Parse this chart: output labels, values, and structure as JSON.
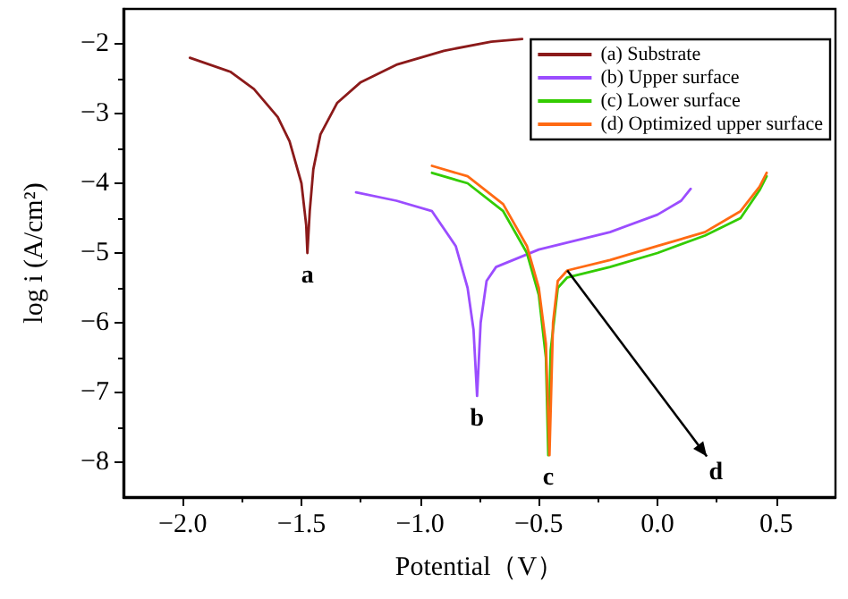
{
  "chart_data": {
    "type": "line",
    "xlabel": "Potential（V）",
    "ylabel": "log i (A/cm²)",
    "xlim": [
      -2.25,
      0.75
    ],
    "xticks": [
      {
        "value": -2,
        "label": "−2.0"
      },
      {
        "value": -1.5,
        "label": "−1.5"
      },
      {
        "value": -1,
        "label": "−1.0"
      },
      {
        "value": -0.5,
        "label": "−0.5"
      },
      {
        "value": 0,
        "label": "0.0"
      },
      {
        "value": 0.5,
        "label": "0.5"
      }
    ],
    "ylim": [
      -8.5,
      -1.5
    ],
    "yticks": [
      -8,
      -7,
      -6,
      -5,
      -4,
      -3,
      -2
    ],
    "grid": false,
    "legend": "top right",
    "marker": "none",
    "line_style": "solid",
    "series": [
      {
        "name": "(a) Substrate",
        "color": "#8b1a1a",
        "x": [
          -1.97,
          -1.8,
          -1.7,
          -1.6,
          -1.55,
          -1.5,
          -1.48,
          -1.475,
          -1.465,
          -1.45,
          -1.42,
          -1.35,
          -1.25,
          -1.1,
          -0.9,
          -0.7,
          -0.57
        ],
        "values": [
          -2.2,
          -2.4,
          -2.65,
          -3.05,
          -3.4,
          -4.0,
          -4.6,
          -5.0,
          -4.4,
          -3.8,
          -3.3,
          -2.85,
          -2.55,
          -2.3,
          -2.1,
          -1.97,
          -1.93
        ]
      },
      {
        "name": "(b) Upper surface",
        "color": "#9b4dff",
        "x": [
          -1.27,
          -1.1,
          -0.95,
          -0.85,
          -0.8,
          -0.775,
          -0.76,
          -0.745,
          -0.72,
          -0.68,
          -0.5,
          -0.2,
          0.0,
          0.1,
          0.14
        ],
        "values": [
          -4.13,
          -4.25,
          -4.4,
          -4.9,
          -5.5,
          -6.1,
          -7.05,
          -6.0,
          -5.4,
          -5.2,
          -4.95,
          -4.7,
          -4.45,
          -4.25,
          -4.08
        ]
      },
      {
        "name": "(c) Lower surface",
        "color": "#33cc00",
        "x": [
          -0.95,
          -0.8,
          -0.65,
          -0.55,
          -0.5,
          -0.47,
          -0.46,
          -0.45,
          -0.42,
          -0.38,
          -0.2,
          0.0,
          0.2,
          0.35,
          0.43,
          0.46
        ],
        "values": [
          -3.85,
          -4.0,
          -4.4,
          -5.0,
          -5.6,
          -6.5,
          -7.9,
          -6.4,
          -5.5,
          -5.35,
          -5.2,
          -5.0,
          -4.75,
          -4.5,
          -4.1,
          -3.9
        ]
      },
      {
        "name": "(d) Optimized upper surface",
        "color": "#ff6a13",
        "x": [
          -0.95,
          -0.8,
          -0.65,
          -0.55,
          -0.5,
          -0.47,
          -0.455,
          -0.44,
          -0.42,
          -0.38,
          -0.2,
          0.0,
          0.2,
          0.35,
          0.43,
          0.46
        ],
        "values": [
          -3.75,
          -3.9,
          -4.3,
          -4.9,
          -5.5,
          -6.3,
          -7.9,
          -6.0,
          -5.4,
          -5.25,
          -5.1,
          -4.9,
          -4.7,
          -4.4,
          -4.05,
          -3.85
        ]
      }
    ],
    "annotations": [
      "a",
      "b",
      "c",
      {
        "text": "d",
        "x": -0.38,
        "y": -5.25
      }
    ]
  }
}
